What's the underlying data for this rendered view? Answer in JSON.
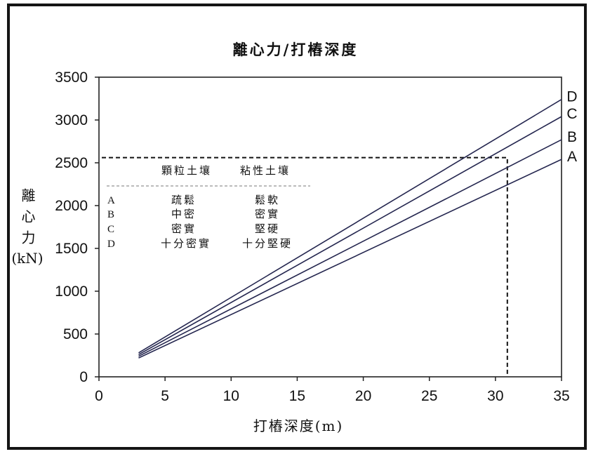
{
  "chart_data": {
    "type": "line",
    "title": "離心力/打樁深度",
    "xlabel": "打樁深度(m)",
    "ylabel": "離心力",
    "yunit": "(kN)",
    "xlim": [
      0,
      35
    ],
    "ylim": [
      0,
      3500
    ],
    "xticks": [
      0,
      5,
      10,
      15,
      20,
      25,
      30,
      35
    ],
    "yticks": [
      0,
      500,
      1000,
      1500,
      2000,
      2500,
      3000,
      3500
    ],
    "grid": false,
    "legend_position": "right",
    "line_color": "#24264f",
    "series": [
      {
        "name": "A",
        "x": [
          3,
          35
        ],
        "y": [
          220,
          2540
        ]
      },
      {
        "name": "B",
        "x": [
          3,
          35
        ],
        "y": [
          240,
          2770
        ]
      },
      {
        "name": "C",
        "x": [
          3,
          35
        ],
        "y": [
          260,
          3040
        ]
      },
      {
        "name": "D",
        "x": [
          3,
          35
        ],
        "y": [
          280,
          3240
        ]
      }
    ],
    "reference_line": {
      "dashed": true,
      "x": 30.9,
      "y": 2560
    },
    "legend_table": {
      "headers": [
        "顆粒土壤",
        "粘性土壤"
      ],
      "rows": [
        {
          "key": "A",
          "granular": "疏鬆",
          "cohesive": "鬆軟"
        },
        {
          "key": "B",
          "granular": "中密",
          "cohesive": "密實"
        },
        {
          "key": "C",
          "granular": "密實",
          "cohesive": "堅硬"
        },
        {
          "key": "D",
          "granular": "十分密實",
          "cohesive": "十分堅硬"
        }
      ]
    }
  }
}
